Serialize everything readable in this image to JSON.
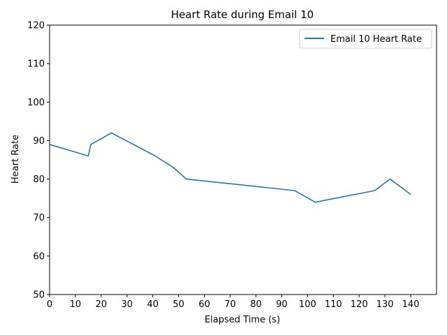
{
  "chart_data": {
    "type": "line",
    "title": "Heart Rate during Email 10",
    "xlabel": "Elapsed Time (s)",
    "ylabel": "Heart Rate",
    "xlim": [
      0,
      150
    ],
    "ylim": [
      50,
      120
    ],
    "xticks": [
      0,
      10,
      20,
      30,
      40,
      50,
      60,
      70,
      80,
      90,
      100,
      110,
      120,
      130,
      140
    ],
    "yticks": [
      50,
      60,
      70,
      80,
      90,
      100,
      110,
      120
    ],
    "grid": false,
    "legend_position": "top-right",
    "series": [
      {
        "name": "Email 10 Heart Rate",
        "color": "#1f77b4",
        "x": [
          0,
          15,
          16,
          24,
          41,
          48,
          53,
          95,
          103,
          126,
          132,
          140
        ],
        "y": [
          89,
          86,
          89,
          92,
          86,
          83,
          80,
          77,
          74,
          77,
          80,
          76
        ]
      }
    ]
  }
}
